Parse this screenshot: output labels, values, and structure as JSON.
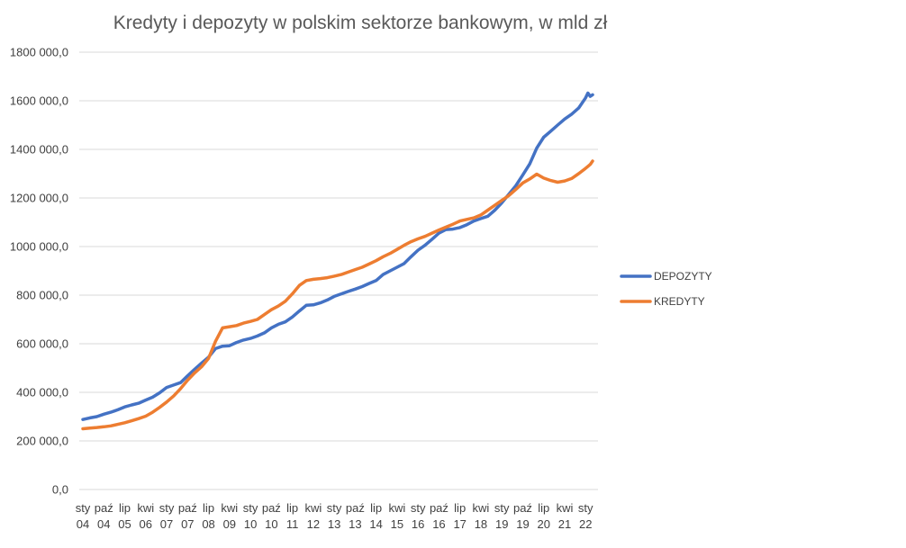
{
  "chart_data": {
    "type": "line",
    "title": "Kredyty i depozyty w polskim sektorze bankowym, w mld zł",
    "xlabel": "",
    "ylabel": "",
    "ylim": [
      0,
      1800000
    ],
    "y_ticks": [
      0,
      200000,
      400000,
      600000,
      800000,
      1000000,
      1200000,
      1400000,
      1600000,
      1800000
    ],
    "y_tick_labels": [
      "0,0",
      "200 000,0",
      "400 000,0",
      "600 000,0",
      "800 000,0",
      "1000 000,0",
      "1200 000,0",
      "1400 000,0",
      "1600 000,0",
      "1800 000,0"
    ],
    "x_range": [
      "2004-01",
      "2022-04"
    ],
    "x_ticks": [
      {
        "date": "2004-01",
        "month": "sty",
        "year": "04"
      },
      {
        "date": "2004-10",
        "month": "paź",
        "year": "04"
      },
      {
        "date": "2005-07",
        "month": "lip",
        "year": "05"
      },
      {
        "date": "2006-04",
        "month": "kwi",
        "year": "06"
      },
      {
        "date": "2007-01",
        "month": "sty",
        "year": "07"
      },
      {
        "date": "2007-10",
        "month": "paź",
        "year": "07"
      },
      {
        "date": "2008-07",
        "month": "lip",
        "year": "08"
      },
      {
        "date": "2009-04",
        "month": "kwi",
        "year": "09"
      },
      {
        "date": "2010-01",
        "month": "sty",
        "year": "10"
      },
      {
        "date": "2010-10",
        "month": "paź",
        "year": "10"
      },
      {
        "date": "2011-07",
        "month": "lip",
        "year": "11"
      },
      {
        "date": "2012-04",
        "month": "kwi",
        "year": "12"
      },
      {
        "date": "2013-01",
        "month": "sty",
        "year": "13"
      },
      {
        "date": "2013-10",
        "month": "paź",
        "year": "13"
      },
      {
        "date": "2014-07",
        "month": "lip",
        "year": "14"
      },
      {
        "date": "2015-04",
        "month": "kwi",
        "year": "15"
      },
      {
        "date": "2016-01",
        "month": "sty",
        "year": "16"
      },
      {
        "date": "2016-10",
        "month": "paź",
        "year": "16"
      },
      {
        "date": "2017-07",
        "month": "lip",
        "year": "17"
      },
      {
        "date": "2018-04",
        "month": "kwi",
        "year": "18"
      },
      {
        "date": "2019-01",
        "month": "sty",
        "year": "19"
      },
      {
        "date": "2019-10",
        "month": "paź",
        "year": "19"
      },
      {
        "date": "2020-07",
        "month": "lip",
        "year": "20"
      },
      {
        "date": "2021-04",
        "month": "kwi",
        "year": "21"
      },
      {
        "date": "2022-01",
        "month": "sty",
        "year": "22"
      }
    ],
    "grid": true,
    "legend_position": "right",
    "series": [
      {
        "name": "DEPOZYTY",
        "color": "#4472c4",
        "points": [
          [
            "2004-01",
            288000
          ],
          [
            "2004-04",
            295000
          ],
          [
            "2004-07",
            300000
          ],
          [
            "2004-10",
            310000
          ],
          [
            "2005-01",
            318000
          ],
          [
            "2005-04",
            328000
          ],
          [
            "2005-07",
            340000
          ],
          [
            "2005-10",
            348000
          ],
          [
            "2006-01",
            355000
          ],
          [
            "2006-04",
            368000
          ],
          [
            "2006-07",
            380000
          ],
          [
            "2006-10",
            398000
          ],
          [
            "2007-01",
            420000
          ],
          [
            "2007-04",
            430000
          ],
          [
            "2007-07",
            440000
          ],
          [
            "2007-10",
            468000
          ],
          [
            "2008-01",
            495000
          ],
          [
            "2008-04",
            520000
          ],
          [
            "2008-07",
            545000
          ],
          [
            "2008-10",
            580000
          ],
          [
            "2009-01",
            590000
          ],
          [
            "2009-04",
            592000
          ],
          [
            "2009-07",
            605000
          ],
          [
            "2009-10",
            615000
          ],
          [
            "2010-01",
            622000
          ],
          [
            "2010-04",
            632000
          ],
          [
            "2010-07",
            645000
          ],
          [
            "2010-10",
            665000
          ],
          [
            "2011-01",
            680000
          ],
          [
            "2011-04",
            690000
          ],
          [
            "2011-07",
            710000
          ],
          [
            "2011-10",
            735000
          ],
          [
            "2012-01",
            758000
          ],
          [
            "2012-04",
            760000
          ],
          [
            "2012-07",
            768000
          ],
          [
            "2012-10",
            780000
          ],
          [
            "2013-01",
            795000
          ],
          [
            "2013-04",
            805000
          ],
          [
            "2013-07",
            815000
          ],
          [
            "2013-10",
            825000
          ],
          [
            "2014-01",
            835000
          ],
          [
            "2014-04",
            848000
          ],
          [
            "2014-07",
            860000
          ],
          [
            "2014-10",
            885000
          ],
          [
            "2015-01",
            900000
          ],
          [
            "2015-04",
            915000
          ],
          [
            "2015-07",
            930000
          ],
          [
            "2015-10",
            958000
          ],
          [
            "2016-01",
            985000
          ],
          [
            "2016-04",
            1005000
          ],
          [
            "2016-07",
            1030000
          ],
          [
            "2016-10",
            1055000
          ],
          [
            "2017-01",
            1070000
          ],
          [
            "2017-04",
            1072000
          ],
          [
            "2017-07",
            1078000
          ],
          [
            "2017-10",
            1090000
          ],
          [
            "2018-01",
            1105000
          ],
          [
            "2018-04",
            1115000
          ],
          [
            "2018-07",
            1125000
          ],
          [
            "2018-10",
            1150000
          ],
          [
            "2019-01",
            1180000
          ],
          [
            "2019-04",
            1215000
          ],
          [
            "2019-07",
            1250000
          ],
          [
            "2019-10",
            1295000
          ],
          [
            "2020-01",
            1340000
          ],
          [
            "2020-04",
            1405000
          ],
          [
            "2020-07",
            1450000
          ],
          [
            "2020-10",
            1475000
          ],
          [
            "2021-01",
            1500000
          ],
          [
            "2021-04",
            1525000
          ],
          [
            "2021-07",
            1545000
          ],
          [
            "2021-10",
            1570000
          ],
          [
            "2022-01",
            1612000
          ],
          [
            "2022-02",
            1632000
          ],
          [
            "2022-03",
            1618000
          ],
          [
            "2022-04",
            1625000
          ]
        ]
      },
      {
        "name": "KREDYTY",
        "color": "#ed7d31",
        "points": [
          [
            "2004-01",
            250000
          ],
          [
            "2004-04",
            253000
          ],
          [
            "2004-07",
            255000
          ],
          [
            "2004-10",
            258000
          ],
          [
            "2005-01",
            262000
          ],
          [
            "2005-04",
            268000
          ],
          [
            "2005-07",
            275000
          ],
          [
            "2005-10",
            283000
          ],
          [
            "2006-01",
            292000
          ],
          [
            "2006-04",
            302000
          ],
          [
            "2006-07",
            318000
          ],
          [
            "2006-10",
            338000
          ],
          [
            "2007-01",
            360000
          ],
          [
            "2007-04",
            385000
          ],
          [
            "2007-07",
            415000
          ],
          [
            "2007-10",
            450000
          ],
          [
            "2008-01",
            480000
          ],
          [
            "2008-04",
            505000
          ],
          [
            "2008-07",
            540000
          ],
          [
            "2008-10",
            610000
          ],
          [
            "2009-01",
            665000
          ],
          [
            "2009-04",
            670000
          ],
          [
            "2009-07",
            675000
          ],
          [
            "2009-10",
            685000
          ],
          [
            "2010-01",
            692000
          ],
          [
            "2010-04",
            700000
          ],
          [
            "2010-07",
            720000
          ],
          [
            "2010-10",
            740000
          ],
          [
            "2011-01",
            755000
          ],
          [
            "2011-04",
            775000
          ],
          [
            "2011-07",
            805000
          ],
          [
            "2011-10",
            840000
          ],
          [
            "2012-01",
            860000
          ],
          [
            "2012-04",
            865000
          ],
          [
            "2012-07",
            868000
          ],
          [
            "2012-10",
            872000
          ],
          [
            "2013-01",
            878000
          ],
          [
            "2013-04",
            885000
          ],
          [
            "2013-07",
            895000
          ],
          [
            "2013-10",
            905000
          ],
          [
            "2014-01",
            915000
          ],
          [
            "2014-04",
            928000
          ],
          [
            "2014-07",
            942000
          ],
          [
            "2014-10",
            958000
          ],
          [
            "2015-01",
            972000
          ],
          [
            "2015-04",
            988000
          ],
          [
            "2015-07",
            1005000
          ],
          [
            "2015-10",
            1020000
          ],
          [
            "2016-01",
            1032000
          ],
          [
            "2016-04",
            1042000
          ],
          [
            "2016-07",
            1055000
          ],
          [
            "2016-10",
            1068000
          ],
          [
            "2017-01",
            1080000
          ],
          [
            "2017-04",
            1092000
          ],
          [
            "2017-07",
            1105000
          ],
          [
            "2017-10",
            1112000
          ],
          [
            "2018-01",
            1118000
          ],
          [
            "2018-04",
            1130000
          ],
          [
            "2018-07",
            1150000
          ],
          [
            "2018-10",
            1170000
          ],
          [
            "2019-01",
            1190000
          ],
          [
            "2019-04",
            1210000
          ],
          [
            "2019-07",
            1235000
          ],
          [
            "2019-10",
            1262000
          ],
          [
            "2020-01",
            1278000
          ],
          [
            "2020-04",
            1298000
          ],
          [
            "2020-07",
            1282000
          ],
          [
            "2020-10",
            1272000
          ],
          [
            "2021-01",
            1265000
          ],
          [
            "2021-04",
            1270000
          ],
          [
            "2021-07",
            1280000
          ],
          [
            "2021-10",
            1300000
          ],
          [
            "2022-01",
            1322000
          ],
          [
            "2022-02",
            1330000
          ],
          [
            "2022-03",
            1338000
          ],
          [
            "2022-04",
            1352000
          ]
        ]
      }
    ]
  }
}
